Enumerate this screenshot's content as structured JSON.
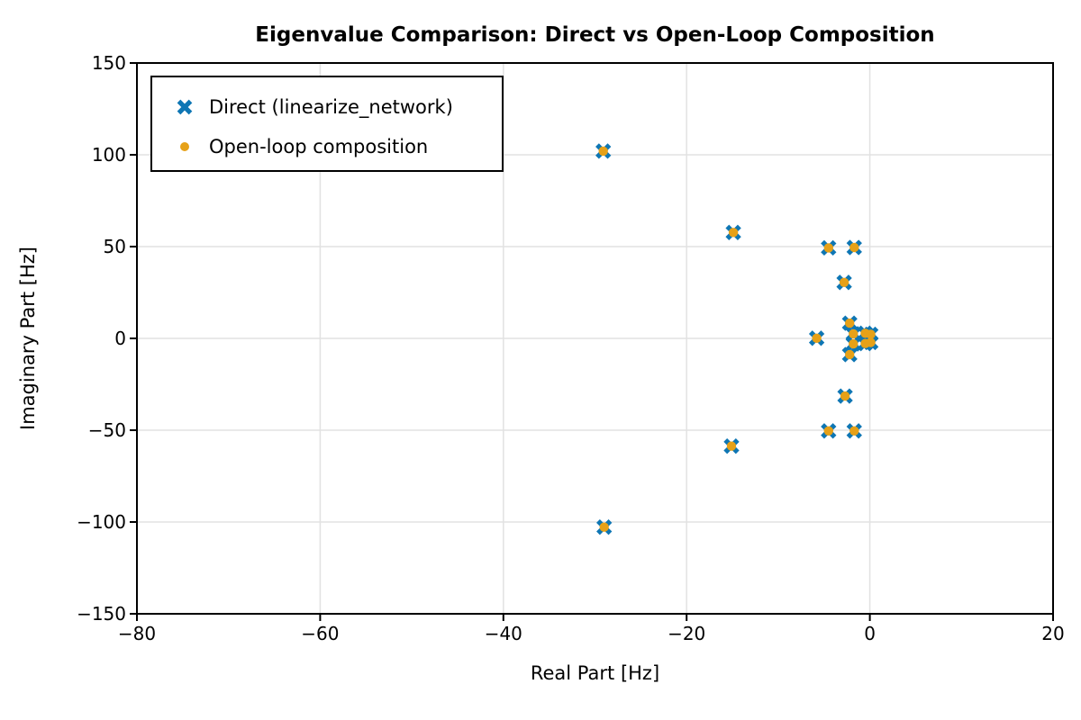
{
  "chart_data": {
    "type": "scatter",
    "title": "Eigenvalue Comparison: Direct vs Open-Loop Composition",
    "xlabel": "Real Part [Hz]",
    "ylabel": "Imaginary Part [Hz]",
    "xlim": [
      -80,
      20
    ],
    "ylim": [
      -150,
      150
    ],
    "xticks": [
      -80,
      -60,
      -40,
      -20,
      0,
      20
    ],
    "yticks": [
      -150,
      -100,
      -50,
      0,
      50,
      100,
      150
    ],
    "grid": true,
    "legend_position": "upper-left",
    "series": [
      {
        "name": "Direct (linearize_network)",
        "marker": "X",
        "color": "#0e76b4",
        "marker_size": 13.5,
        "points": [
          [
            -29.1,
            102.0
          ],
          [
            -29.0,
            -102.8
          ],
          [
            -14.9,
            57.7
          ],
          [
            -15.1,
            -58.7
          ],
          [
            -4.5,
            49.3
          ],
          [
            -1.7,
            49.5
          ],
          [
            -4.5,
            -50.4
          ],
          [
            -1.7,
            -50.4
          ],
          [
            -2.8,
            30.5
          ],
          [
            -2.7,
            -31.4
          ],
          [
            -5.8,
            0.1
          ],
          [
            -2.2,
            8.3
          ],
          [
            -2.2,
            -8.8
          ],
          [
            -1.8,
            2.5
          ],
          [
            -1.8,
            -3.0
          ],
          [
            -0.5,
            2.8
          ],
          [
            -0.5,
            -2.8
          ],
          [
            0.1,
            2.2
          ],
          [
            0.1,
            -2.2
          ]
        ]
      },
      {
        "name": "Open-loop composition",
        "marker": "circle",
        "color": "#e6a118",
        "marker_size": 10.4,
        "points": [
          [
            -29.1,
            102.0
          ],
          [
            -29.0,
            -102.8
          ],
          [
            -14.9,
            57.7
          ],
          [
            -15.1,
            -58.7
          ],
          [
            -4.5,
            49.3
          ],
          [
            -1.7,
            49.5
          ],
          [
            -4.5,
            -50.4
          ],
          [
            -1.7,
            -50.4
          ],
          [
            -2.8,
            30.5
          ],
          [
            -2.7,
            -31.4
          ],
          [
            -5.8,
            0.1
          ],
          [
            -2.2,
            8.3
          ],
          [
            -2.2,
            -8.8
          ],
          [
            -1.8,
            2.5
          ],
          [
            -1.8,
            -3.0
          ],
          [
            -0.5,
            2.8
          ],
          [
            -0.5,
            -2.8
          ],
          [
            0.1,
            2.2
          ],
          [
            0.1,
            -2.2
          ]
        ]
      }
    ],
    "colors": {
      "background": "#ffffff",
      "grid": "#e2e2e2",
      "axis": "#000000",
      "text": "#000000"
    }
  }
}
